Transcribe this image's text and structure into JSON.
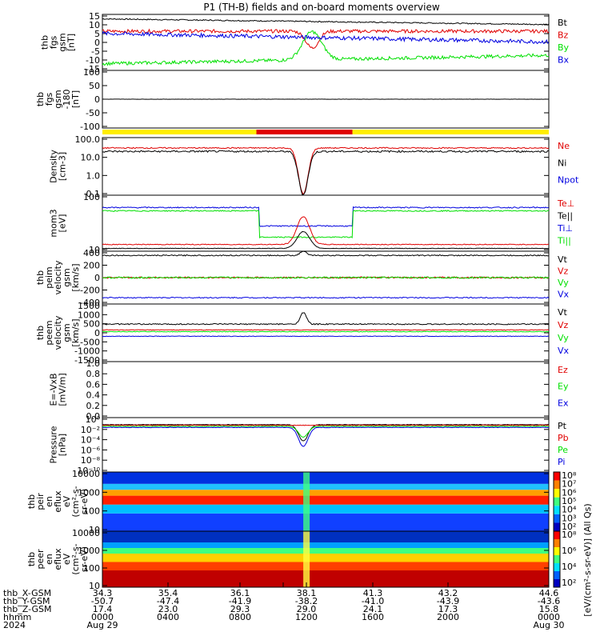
{
  "title": "P1 (TH-B) fields and on-board moments overview",
  "colors": {
    "black": "#000000",
    "red": "#e00000",
    "green": "#00e000",
    "blue": "#0000e0",
    "yellow": "#ffee00",
    "barred": "#e00000"
  },
  "panels": [
    {
      "id": "fgs",
      "ylabel": [
        "thb",
        "fgs",
        "gsm",
        "[nT]"
      ],
      "ticks": [
        "15",
        "10",
        "5",
        "0",
        "-5",
        "-10",
        "-15"
      ],
      "legend": [
        {
          "t": "Bt",
          "c": "black"
        },
        {
          "t": "Bz",
          "c": "red"
        },
        {
          "t": "By",
          "c": "green"
        },
        {
          "t": "Bx",
          "c": "blue"
        }
      ]
    },
    {
      "id": "fgs2",
      "ylabel": [
        "thb",
        "fgs",
        "gsm",
        "-180",
        "[nT]"
      ],
      "ticks": [
        "100",
        "50",
        "0",
        "-50",
        "-100"
      ],
      "legend": []
    },
    {
      "id": "density",
      "ylabel": [
        "Density",
        "[cm-3]"
      ],
      "ticks": [
        "100.0",
        "10.0",
        "1.0",
        "0.1"
      ],
      "legend": [
        {
          "t": "Ne",
          "c": "red"
        },
        {
          "t": "Ni",
          "c": "black"
        },
        {
          "t": "Npot",
          "c": "blue"
        }
      ]
    },
    {
      "id": "temp",
      "ylabel": [
        "mom3",
        "[eV]"
      ],
      "ticks": [
        "100",
        "10"
      ],
      "legend": [
        {
          "t": "Te⊥",
          "c": "red"
        },
        {
          "t": "Te||",
          "c": "black"
        },
        {
          "t": "Ti⊥",
          "c": "blue"
        },
        {
          "t": "Ti||",
          "c": "green"
        }
      ]
    },
    {
      "id": "peim",
      "ylabel": [
        "thb",
        "peim",
        "velocity",
        "gsm",
        "[km/s]"
      ],
      "ticks": [
        "400",
        "200",
        "0",
        "-200",
        "-400"
      ],
      "legend": [
        {
          "t": "Vt",
          "c": "black"
        },
        {
          "t": "Vz",
          "c": "red"
        },
        {
          "t": "Vy",
          "c": "green"
        },
        {
          "t": "Vx",
          "c": "blue"
        }
      ]
    },
    {
      "id": "peem",
      "ylabel": [
        "thb",
        "peem",
        "velocity",
        "gsm",
        "[km/s]"
      ],
      "ticks": [
        "1500",
        "1000",
        "500",
        "0",
        "-500",
        "-1000",
        "-1500"
      ],
      "legend": [
        {
          "t": "Vt",
          "c": "black"
        },
        {
          "t": "Vz",
          "c": "red"
        },
        {
          "t": "Vy",
          "c": "green"
        },
        {
          "t": "Vx",
          "c": "blue"
        }
      ]
    },
    {
      "id": "efield",
      "ylabel": [
        "E=-VxB",
        "[mV/m]"
      ],
      "ticks": [
        "1.0",
        "0.8",
        "0.6",
        "0.4",
        "0.2",
        "0.0"
      ],
      "legend": [
        {
          "t": "Ez",
          "c": "red"
        },
        {
          "t": "Ey",
          "c": "green"
        },
        {
          "t": "Ex",
          "c": "blue"
        }
      ]
    },
    {
      "id": "pressure",
      "ylabel": [
        "Pressure",
        "[nPa]"
      ],
      "ticks": [
        "10⁰",
        "10⁻²",
        "10⁻⁴",
        "10⁻⁶",
        "10⁻⁸",
        "10⁻¹⁰"
      ],
      "legend": [
        {
          "t": "Pt",
          "c": "black"
        },
        {
          "t": "Pb",
          "c": "red"
        },
        {
          "t": "Pe",
          "c": "green"
        },
        {
          "t": "Pi",
          "c": "blue"
        }
      ]
    },
    {
      "id": "peir",
      "ylabel": [
        "thb",
        "peir",
        "en",
        "eflux",
        "eV",
        "(cm²-s-",
        "sr-eV)"
      ],
      "ticks": [
        "10000",
        "1000",
        "100",
        "10"
      ],
      "legend": []
    },
    {
      "id": "peer",
      "ylabel": [
        "thb",
        "peer",
        "en",
        "eflux",
        "eV",
        "(cm²-s-",
        "sr-eV)"
      ],
      "ticks": [
        "10000",
        "1000",
        "100",
        "10"
      ],
      "legend": []
    }
  ],
  "colorbar1": {
    "ticks": [
      "10⁸",
      "10⁷",
      "10⁶",
      "10⁵",
      "10⁴",
      "10³",
      "10²"
    ]
  },
  "colorbar2": {
    "ticks": [
      "10⁸",
      "10⁶",
      "10⁴",
      "10²"
    ]
  },
  "colorbar_label": "[eV/(cm²-s-sr-eV)] (All Qs)",
  "xaxis": {
    "rows": [
      {
        "label": "thb_X-GSM",
        "values": [
          "34.3",
          "35.4",
          "36.1",
          "",
          "38.1",
          "41.3",
          "43.2",
          "44.6"
        ]
      },
      {
        "label": "thb_Y-GSM",
        "values": [
          "-50.7",
          "-47.4",
          "-41.9",
          "",
          "-38.2",
          "-41.0",
          "-43.9",
          "-43.6"
        ]
      },
      {
        "label": "thb_Z-GSM",
        "values": [
          "17.4",
          "23.0",
          "29.3",
          "",
          "29.0",
          "24.1",
          "17.3",
          "15.8"
        ]
      },
      {
        "label": "hhmm",
        "values": [
          "0000",
          "0400",
          "0800",
          "",
          "1200",
          "1600",
          "2000",
          "0000"
        ]
      },
      {
        "label": "2024",
        "values": [
          "Aug 29",
          "",
          "",
          "",
          "",
          "",
          "",
          "Aug 30"
        ]
      }
    ]
  },
  "chart_data": {
    "type": "line",
    "title": "P1 (TH-B) fields and on-board moments overview",
    "x": [
      "0000",
      "0400",
      "0800",
      "1200",
      "1600",
      "2000",
      "0000"
    ],
    "series": [
      {
        "name": "Bt",
        "values": [
          12,
          13,
          13,
          14,
          12,
          10,
          8
        ]
      },
      {
        "name": "Bz",
        "values": [
          5,
          6,
          6,
          8,
          5,
          3,
          2
        ]
      },
      {
        "name": "By",
        "values": [
          -10,
          -8,
          -6,
          -2,
          -5,
          -8,
          -10
        ]
      },
      {
        "name": "Bx",
        "values": [
          2,
          4,
          5,
          6,
          4,
          3,
          -4
        ]
      }
    ]
  }
}
